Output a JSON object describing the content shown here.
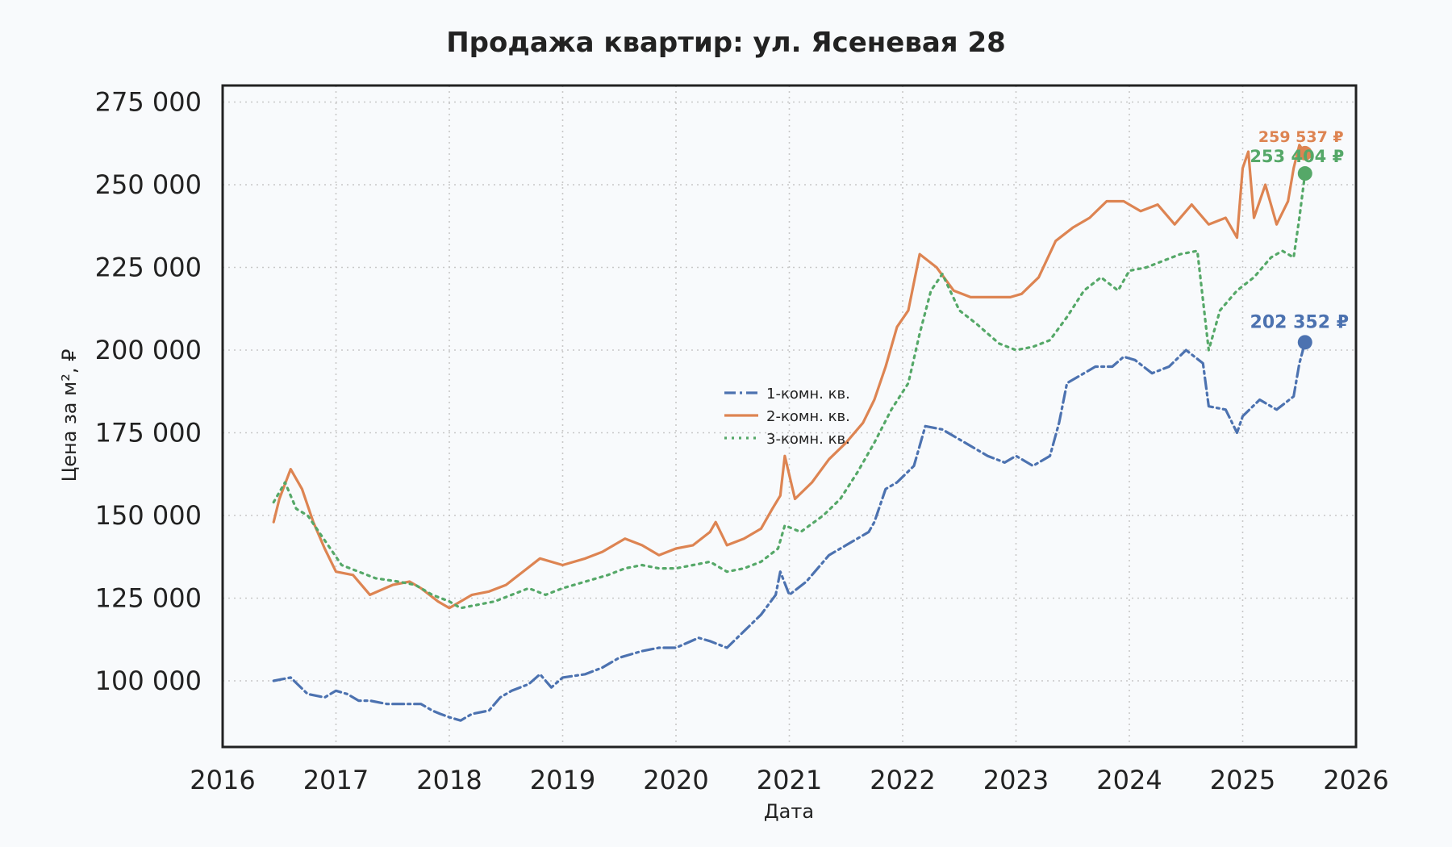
{
  "chart_data": {
    "type": "line",
    "title": "Продажа квартир: ул. Ясеневая 28",
    "xlabel": "Дата",
    "ylabel": "Цена за м², ₽",
    "xlim": [
      2016,
      2026
    ],
    "ylim": [
      80000,
      280000
    ],
    "x_ticks": [
      2016,
      2017,
      2018,
      2019,
      2020,
      2021,
      2022,
      2023,
      2024,
      2025,
      2026
    ],
    "x_tick_labels": [
      "2016",
      "2017",
      "2018",
      "2019",
      "2020",
      "2021",
      "2022",
      "2023",
      "2024",
      "2025",
      "2026"
    ],
    "y_ticks": [
      100000,
      125000,
      150000,
      175000,
      200000,
      225000,
      250000,
      275000
    ],
    "y_tick_labels": [
      "100 000",
      "125 000",
      "150 000",
      "175 000",
      "200 000",
      "225 000",
      "250 000",
      "275 000"
    ],
    "grid": true,
    "legend_position": "center",
    "series": [
      {
        "name": "1-комн. кв.",
        "color": "#4c72b0",
        "style": "dashdot",
        "end_label": "202 352 ₽",
        "end_value": 202352,
        "x": [
          2016.45,
          2016.6,
          2016.75,
          2016.9,
          2017.0,
          2017.1,
          2017.2,
          2017.3,
          2017.45,
          2017.6,
          2017.75,
          2017.85,
          2017.92,
          2018.0,
          2018.1,
          2018.2,
          2018.35,
          2018.45,
          2018.55,
          2018.7,
          2018.8,
          2018.9,
          2019.0,
          2019.2,
          2019.35,
          2019.5,
          2019.7,
          2019.85,
          2020.0,
          2020.2,
          2020.3,
          2020.45,
          2020.6,
          2020.75,
          2020.88,
          2020.92,
          2021.0,
          2021.15,
          2021.35,
          2021.5,
          2021.7,
          2021.75,
          2021.85,
          2021.95,
          2022.1,
          2022.2,
          2022.35,
          2022.55,
          2022.75,
          2022.9,
          2023.0,
          2023.15,
          2023.3,
          2023.38,
          2023.45,
          2023.55,
          2023.7,
          2023.85,
          2023.95,
          2024.05,
          2024.2,
          2024.35,
          2024.5,
          2024.65,
          2024.7,
          2024.85,
          2024.95,
          2025.0,
          2025.15,
          2025.3,
          2025.45,
          2025.5,
          2025.55
        ],
        "y": [
          100000,
          101000,
          96000,
          95000,
          97000,
          96000,
          94000,
          94000,
          93000,
          93000,
          93000,
          91000,
          90000,
          89000,
          88000,
          90000,
          91000,
          95000,
          97000,
          99000,
          102000,
          98000,
          101000,
          102000,
          104000,
          107000,
          109000,
          110000,
          110000,
          113000,
          112000,
          110000,
          115000,
          120000,
          126000,
          133000,
          126000,
          130000,
          138000,
          141000,
          145000,
          148000,
          158000,
          160000,
          165000,
          177000,
          176000,
          172000,
          168000,
          166000,
          168000,
          165000,
          168000,
          178000,
          190000,
          192000,
          195000,
          195000,
          198000,
          197000,
          193000,
          195000,
          200000,
          196000,
          183000,
          182000,
          175000,
          180000,
          185000,
          182000,
          186000,
          196000,
          202352
        ]
      },
      {
        "name": "2-комн. кв.",
        "color": "#dd8452",
        "style": "solid",
        "end_label": "259 537 ₽",
        "end_value": 259537,
        "x": [
          2016.45,
          2016.5,
          2016.6,
          2016.7,
          2016.8,
          2016.9,
          2017.0,
          2017.15,
          2017.3,
          2017.5,
          2017.65,
          2017.75,
          2017.9,
          2018.0,
          2018.1,
          2018.2,
          2018.35,
          2018.5,
          2018.65,
          2018.8,
          2019.0,
          2019.2,
          2019.35,
          2019.55,
          2019.7,
          2019.85,
          2020.0,
          2020.15,
          2020.3,
          2020.35,
          2020.45,
          2020.6,
          2020.75,
          2020.85,
          2020.92,
          2020.96,
          2021.05,
          2021.2,
          2021.35,
          2021.5,
          2021.65,
          2021.75,
          2021.85,
          2021.95,
          2022.05,
          2022.15,
          2022.3,
          2022.45,
          2022.6,
          2022.8,
          2022.95,
          2023.05,
          2023.2,
          2023.35,
          2023.5,
          2023.65,
          2023.8,
          2023.95,
          2024.1,
          2024.25,
          2024.4,
          2024.55,
          2024.7,
          2024.85,
          2024.95,
          2025.0,
          2025.05,
          2025.1,
          2025.2,
          2025.3,
          2025.4,
          2025.45,
          2025.5,
          2025.55
        ],
        "y": [
          148000,
          155000,
          164000,
          158000,
          148000,
          140000,
          133000,
          132000,
          126000,
          129000,
          130000,
          128000,
          124000,
          122000,
          124000,
          126000,
          127000,
          129000,
          133000,
          137000,
          135000,
          137000,
          139000,
          143000,
          141000,
          138000,
          140000,
          141000,
          145000,
          148000,
          141000,
          143000,
          146000,
          152000,
          156000,
          168000,
          155000,
          160000,
          167000,
          172000,
          178000,
          185000,
          195000,
          207000,
          212000,
          229000,
          225000,
          218000,
          216000,
          216000,
          216000,
          217000,
          222000,
          233000,
          237000,
          240000,
          245000,
          245000,
          242000,
          244000,
          238000,
          244000,
          238000,
          240000,
          234000,
          255000,
          260000,
          240000,
          250000,
          238000,
          245000,
          255000,
          262000,
          259537
        ]
      },
      {
        "name": "3-комн. кв.",
        "color": "#55a868",
        "style": "dotted",
        "end_label": "253 404 ₽",
        "end_value": 253404,
        "x": [
          2016.45,
          2016.55,
          2016.65,
          2016.75,
          2016.85,
          2016.95,
          2017.05,
          2017.2,
          2017.35,
          2017.55,
          2017.7,
          2017.85,
          2018.0,
          2018.1,
          2018.25,
          2018.4,
          2018.55,
          2018.7,
          2018.85,
          2019.0,
          2019.2,
          2019.4,
          2019.55,
          2019.7,
          2019.85,
          2020.0,
          2020.15,
          2020.3,
          2020.45,
          2020.6,
          2020.75,
          2020.9,
          2020.96,
          2021.1,
          2021.3,
          2021.45,
          2021.6,
          2021.75,
          2021.9,
          2022.05,
          2022.15,
          2022.25,
          2022.35,
          2022.5,
          2022.65,
          2022.85,
          2023.0,
          2023.15,
          2023.3,
          2023.45,
          2023.6,
          2023.75,
          2023.9,
          2024.0,
          2024.15,
          2024.3,
          2024.45,
          2024.6,
          2024.7,
          2024.8,
          2024.95,
          2025.1,
          2025.25,
          2025.35,
          2025.45,
          2025.5,
          2025.55
        ],
        "y": [
          154000,
          160000,
          152000,
          150000,
          145000,
          140000,
          135000,
          133000,
          131000,
          130000,
          129000,
          126000,
          124000,
          122000,
          123000,
          124000,
          126000,
          128000,
          126000,
          128000,
          130000,
          132000,
          134000,
          135000,
          134000,
          134000,
          135000,
          136000,
          133000,
          134000,
          136000,
          140000,
          147000,
          145000,
          150000,
          155000,
          163000,
          172000,
          182000,
          190000,
          205000,
          218000,
          223000,
          212000,
          208000,
          202000,
          200000,
          201000,
          203000,
          210000,
          218000,
          222000,
          218000,
          224000,
          225000,
          227000,
          229000,
          230000,
          200000,
          212000,
          218000,
          222000,
          228000,
          230000,
          228000,
          240000,
          253404
        ]
      }
    ]
  }
}
